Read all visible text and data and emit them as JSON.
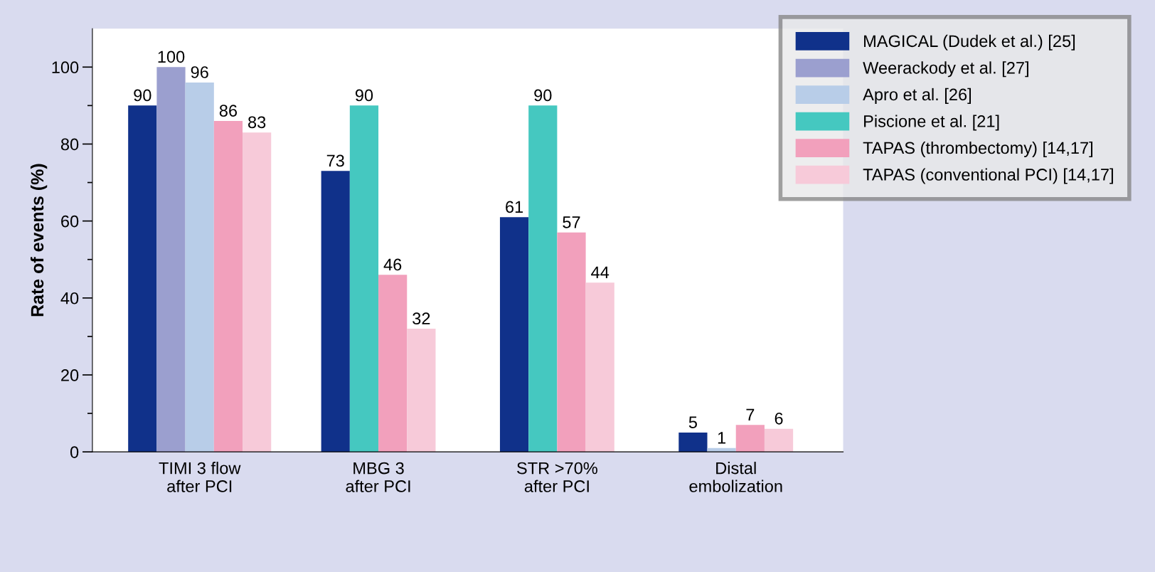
{
  "chart_data": {
    "type": "bar",
    "ylabel": "Rate of events (%)",
    "categories": [
      "TIMI 3 flow\nafter PCI",
      "MBG 3\nafter PCI",
      "STR >70%\nafter PCI",
      "Distal\nembolization"
    ],
    "series": [
      {
        "name": "MAGICAL (Dudek et al.) [25]",
        "color": "#10318a",
        "values": [
          90,
          73,
          61,
          5
        ]
      },
      {
        "name": "Weerackody et al. [27]",
        "color": "#9b9fcf",
        "values": [
          100,
          null,
          null,
          null
        ]
      },
      {
        "name": "Apro et al. [26]",
        "color": "#b8cde8",
        "values": [
          96,
          null,
          null,
          1
        ]
      },
      {
        "name": "Piscione et al. [21]",
        "color": "#45c8c0",
        "values": [
          null,
          90,
          90,
          null
        ]
      },
      {
        "name": "TAPAS (thrombectomy) [14,17]",
        "color": "#f2a0bc",
        "values": [
          86,
          46,
          57,
          7
        ]
      },
      {
        "name": "TAPAS (conventional PCI) [14,17]",
        "color": "#f7cad9",
        "values": [
          83,
          32,
          44,
          6
        ]
      }
    ],
    "ylim": [
      0,
      110
    ],
    "yticks": [
      0,
      20,
      40,
      60,
      80,
      100
    ],
    "data_labels": true,
    "grid": false,
    "legend": "top right"
  }
}
